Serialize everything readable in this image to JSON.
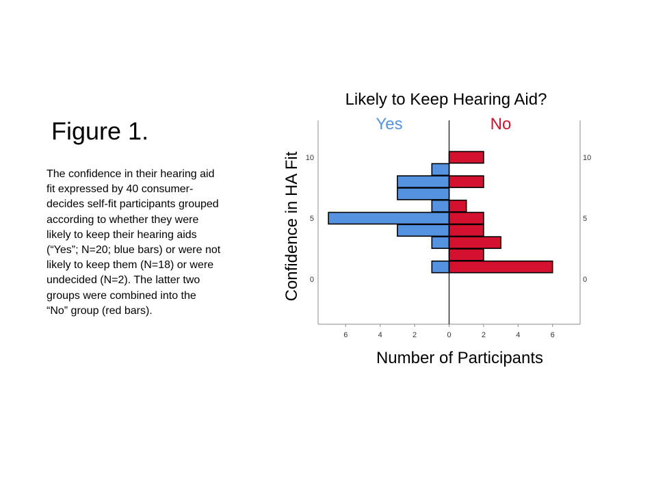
{
  "slide": {
    "title": "Figure 1.",
    "caption_lines": [
      "The confidence in their hearing aid",
      "fit expressed by 40 consumer-",
      "decides self-fit  participants grouped",
      "according to whether they were",
      "likely to keep their hearing aids",
      "(“Yes”; N=20; blue bars) or were not",
      "likely to keep them (N=18) or were",
      "undecided (N=2).  The latter two",
      "groups were combined into the",
      "“No” group (red bars)."
    ]
  },
  "chart_data": {
    "type": "bar",
    "orientation": "horizontal",
    "layout": "back-to-back histogram",
    "title": "Likely to Keep Hearing Aid?",
    "xlabel": "Number of Participants",
    "ylabel": "Confidence in HA Fit",
    "x_ticks": [
      "6",
      "4",
      "2",
      "0",
      "2",
      "4",
      "6"
    ],
    "y_ticks": [
      "0",
      "5",
      "10"
    ],
    "ylim": [
      -4,
      13
    ],
    "xlim": [
      -7.5,
      7.5
    ],
    "grid": false,
    "series": [
      {
        "name": "Yes",
        "color": "#5593E0",
        "side": "left",
        "bins": [
          {
            "y": 1,
            "count": 1
          },
          {
            "y": 3,
            "count": 1
          },
          {
            "y": 4,
            "count": 3
          },
          {
            "y": 5,
            "count": 7
          },
          {
            "y": 6,
            "count": 1
          },
          {
            "y": 7,
            "count": 3
          },
          {
            "y": 8,
            "count": 3
          },
          {
            "y": 9,
            "count": 1
          }
        ]
      },
      {
        "name": "No",
        "color": "#D4112F",
        "side": "right",
        "bins": [
          {
            "y": 1,
            "count": 6
          },
          {
            "y": 2,
            "count": 2
          },
          {
            "y": 3,
            "count": 3
          },
          {
            "y": 4,
            "count": 2
          },
          {
            "y": 5,
            "count": 2
          },
          {
            "y": 6,
            "count": 1
          },
          {
            "y": 8,
            "count": 2
          },
          {
            "y": 10,
            "count": 2
          }
        ]
      }
    ]
  }
}
